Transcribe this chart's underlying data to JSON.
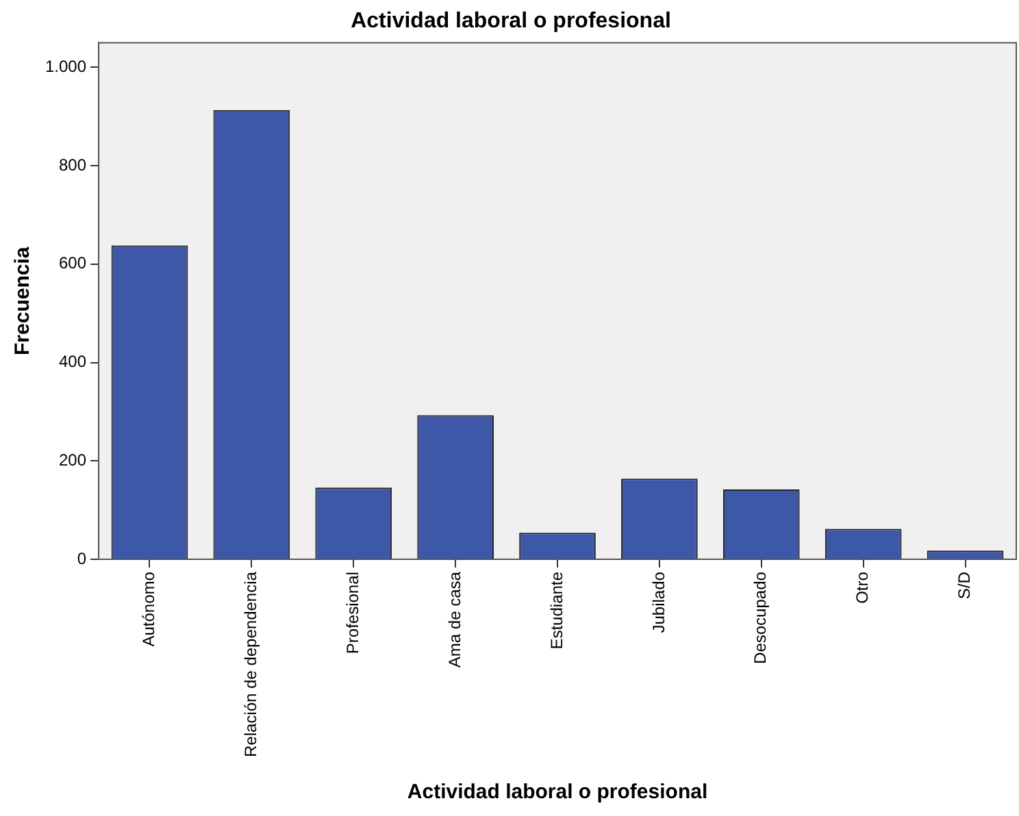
{
  "chart_data": {
    "type": "bar",
    "title": "Actividad laboral o profesional",
    "xlabel": "Actividad laboral o profesional",
    "ylabel": "Frecuencia",
    "categories": [
      "Autónomo",
      "Relación de dependencia",
      "Profesional",
      "Ama de casa",
      "Estudiante",
      "Jubilado",
      "Desocupado",
      "Otro",
      "S/D"
    ],
    "values": [
      638,
      913,
      146,
      293,
      54,
      164,
      142,
      62,
      18
    ],
    "color": "#3d57a9",
    "ylim": [
      0,
      1050
    ],
    "yticks": [
      0,
      200,
      400,
      600,
      800,
      {
        "value": 1000,
        "label": "1.000"
      }
    ],
    "grid": false,
    "legend": false
  }
}
